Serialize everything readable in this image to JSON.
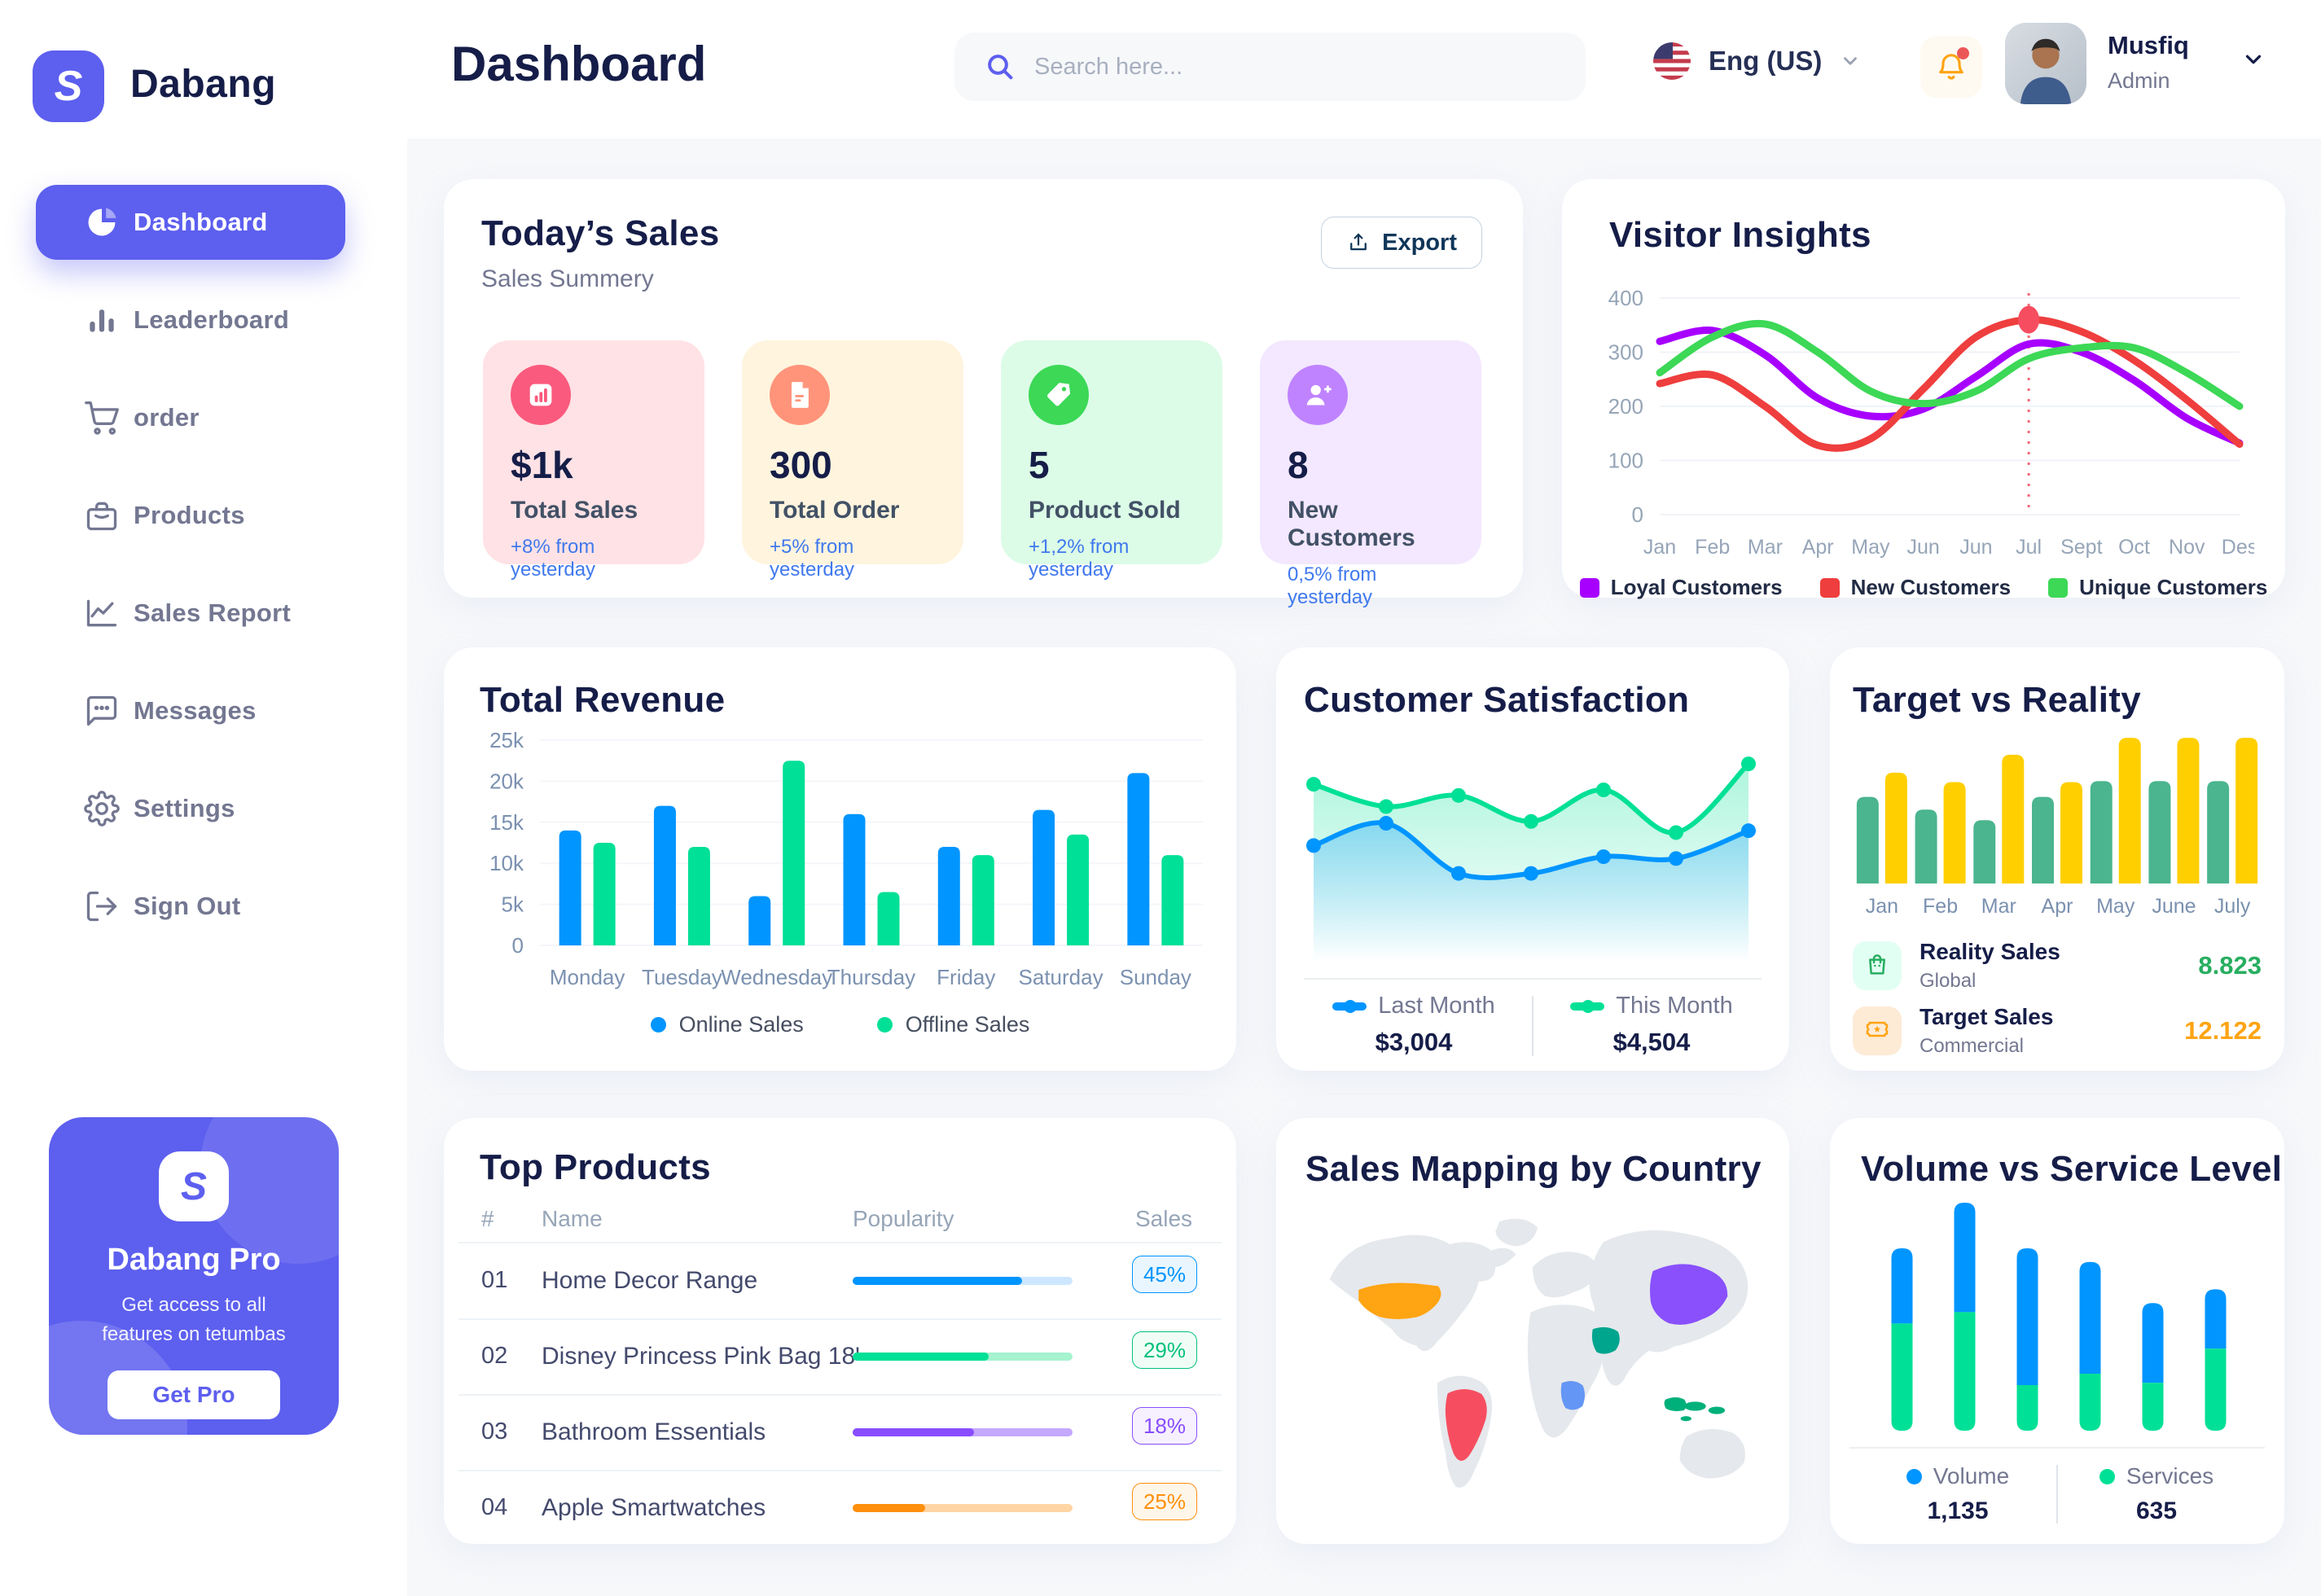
{
  "app": {
    "brand": "Dabang"
  },
  "header": {
    "page_title": "Dashboard",
    "search_placeholder": "Search here...",
    "language": "Eng (US)",
    "user": {
      "name": "Musfiq",
      "role": "Admin"
    }
  },
  "sidebar": {
    "items": [
      {
        "label": "Dashboard",
        "icon": "dashboard",
        "active": true
      },
      {
        "label": "Leaderboard",
        "icon": "leaderboard",
        "active": false
      },
      {
        "label": "order",
        "icon": "order",
        "active": false
      },
      {
        "label": "Products",
        "icon": "products",
        "active": false
      },
      {
        "label": "Sales Report",
        "icon": "sales-report",
        "active": false
      },
      {
        "label": "Messages",
        "icon": "messages",
        "active": false
      },
      {
        "label": "Settings",
        "icon": "settings",
        "active": false
      },
      {
        "label": "Sign Out",
        "icon": "sign-out",
        "active": false
      }
    ],
    "promo": {
      "title": "Dabang Pro",
      "line1": "Get access to all",
      "line2": "features on tetumbas",
      "cta": "Get Pro"
    }
  },
  "todays_sales": {
    "title": "Today’s Sales",
    "subtitle": "Sales Summery",
    "export_label": "Export",
    "cards": [
      {
        "value": "$1k",
        "label": "Total Sales",
        "delta": "+8% from yesterday",
        "bg": "#FFE2E5",
        "icon_bg": "#FA5A7D",
        "icon": "sales"
      },
      {
        "value": "300",
        "label": "Total Order",
        "delta": "+5% from yesterday",
        "bg": "#FFF4DE",
        "icon_bg": "#FF947A",
        "icon": "order"
      },
      {
        "value": "5",
        "label": "Product Sold",
        "delta": "+1,2% from yesterday",
        "bg": "#DCFCE7",
        "icon_bg": "#3CD856",
        "icon": "sold"
      },
      {
        "value": "8",
        "label": "New Customers",
        "delta": "0,5% from yesterday",
        "bg": "#F3E8FF",
        "icon_bg": "#BF83FF",
        "icon": "customers"
      }
    ]
  },
  "chart_data": [
    {
      "id": "visitor-insights",
      "type": "line",
      "title": "Visitor Insights",
      "x": [
        "Jan",
        "Feb",
        "Mar",
        "Apr",
        "May",
        "Jun",
        "Jun",
        "Jul",
        "Sept",
        "Oct",
        "Nov",
        "Des"
      ],
      "ylim": [
        0,
        400
      ],
      "yticks": [
        0,
        100,
        200,
        300,
        400
      ],
      "grid": true,
      "legend_position": "bottom",
      "series": [
        {
          "name": "Loyal Customers",
          "color": "#A700FF",
          "values": [
            320,
            340,
            295,
            215,
            182,
            195,
            255,
            315,
            300,
            248,
            178,
            132
          ]
        },
        {
          "name": "New Customers",
          "color": "#EF3E3E",
          "values": [
            242,
            258,
            200,
            128,
            140,
            232,
            328,
            360,
            338,
            285,
            212,
            130
          ]
        },
        {
          "name": "Unique Customers",
          "color": "#3CD856",
          "values": [
            262,
            328,
            352,
            300,
            228,
            205,
            228,
            288,
            308,
            308,
            262,
            200
          ]
        }
      ],
      "marker": {
        "series": 1,
        "index": 7,
        "value": 360,
        "color": "#F64E60"
      }
    },
    {
      "id": "total-revenue",
      "type": "bar",
      "title": "Total Revenue",
      "categories": [
        "Monday",
        "Tuesday",
        "Wednesday",
        "Thursday",
        "Friday",
        "Saturday",
        "Sunday"
      ],
      "ylim": [
        0,
        25
      ],
      "ytick_labels": [
        "0",
        "5k",
        "10k",
        "15k",
        "20k",
        "25k"
      ],
      "grid": true,
      "legend_position": "bottom",
      "series": [
        {
          "name": "Online Sales",
          "color": "#0095FF",
          "values": [
            14,
            17,
            6,
            16,
            12,
            16.5,
            21
          ]
        },
        {
          "name": "Offline Sales",
          "color": "#00E096",
          "values": [
            12.5,
            12,
            22.5,
            6.5,
            11,
            13.5,
            11
          ]
        }
      ]
    },
    {
      "id": "customer-satisfaction",
      "type": "area",
      "title": "Customer Satisfaction",
      "ylim": [
        0,
        100
      ],
      "grid": false,
      "legend_position": "bottom",
      "series": [
        {
          "name": "Last Month",
          "color": "#0095FF",
          "total": "$3,004",
          "values": [
            45,
            57,
            30,
            30,
            39,
            38,
            53
          ]
        },
        {
          "name": "This Month",
          "color": "#00E096",
          "total": "$4,504",
          "values": [
            78,
            66,
            72,
            58,
            75,
            52,
            89
          ]
        }
      ]
    },
    {
      "id": "target-vs-reality",
      "type": "bar",
      "title": "Target vs Reality",
      "categories": [
        "Jan",
        "Feb",
        "Mar",
        "Apr",
        "May",
        "June",
        "July"
      ],
      "ylim": [
        0,
        14.5
      ],
      "grid": false,
      "series": [
        {
          "name": "Reality Sales",
          "color": "#4AB58E",
          "values": [
            8.2,
            7.0,
            6.0,
            8.2,
            9.7,
            9.7,
            9.7
          ]
        },
        {
          "name": "Target Sales",
          "color": "#FFCF00",
          "values": [
            10.5,
            9.6,
            12.2,
            9.6,
            13.8,
            13.8,
            13.8
          ]
        }
      ],
      "legend": [
        {
          "name": "Reality Sales",
          "sub": "Global",
          "value": "8.823",
          "value_color": "#27AE60",
          "icon_bg": "#E2FFF3",
          "icon_color": "#27AE60"
        },
        {
          "name": "Target Sales",
          "sub": "Commercial",
          "value": "12.122",
          "value_color": "#FFA412",
          "icon_bg": "#FDEBD6",
          "icon_color": "#FFA412"
        }
      ]
    },
    {
      "id": "volume-vs-service",
      "type": "stacked-bar",
      "title": "Volume vs Service Level",
      "ylim": [
        0,
        100
      ],
      "legend_position": "bottom",
      "series": [
        {
          "name": "Volume",
          "color": "#0095FF",
          "total": "1,135",
          "values": [
            33,
            48,
            60,
            49,
            35,
            26
          ]
        },
        {
          "name": "Services",
          "color": "#00E096",
          "total": "635",
          "values": [
            47,
            52,
            20,
            25,
            21,
            36
          ]
        }
      ]
    }
  ],
  "top_products": {
    "title": "Top Products",
    "columns": [
      "#",
      "Name",
      "Popularity",
      "Sales"
    ],
    "rows": [
      {
        "num": "01",
        "name": "Home Decor Range",
        "popularity_pct": 77,
        "sales": "45%",
        "fill": "#0095FF",
        "track": "#CDE7FF",
        "badge_bg": "#EAF6FF",
        "badge_color": "#0095FF"
      },
      {
        "num": "02",
        "name": "Disney Princess Pink Bag 18'",
        "popularity_pct": 62,
        "sales": "29%",
        "fill": "#00E096",
        "track": "#A5F3CF",
        "badge_bg": "#F0FDF6",
        "badge_color": "#00C27C"
      },
      {
        "num": "03",
        "name": "Bathroom Essentials",
        "popularity_pct": 55,
        "sales": "18%",
        "fill": "#884DFF",
        "track": "#C5A8FF",
        "badge_bg": "#F7F1FF",
        "badge_color": "#884DFF"
      },
      {
        "num": "04",
        "name": "Apple Smartwatches",
        "popularity_pct": 33,
        "sales": "25%",
        "fill": "#FF8F0D",
        "track": "#FFD5A4",
        "badge_bg": "#FFF6EA",
        "badge_color": "#FF8F0D"
      }
    ]
  },
  "sales_mapping": {
    "title": "Sales Mapping by Country",
    "countries": [
      {
        "name": "United States",
        "color": "#FFA412"
      },
      {
        "name": "Brazil",
        "color": "#F64E60"
      },
      {
        "name": "Saudi Arabia",
        "color": "#00A58E"
      },
      {
        "name": "DR Congo",
        "color": "#6496F6"
      },
      {
        "name": "China",
        "color": "#8950FC"
      },
      {
        "name": "Indonesia",
        "color": "#00B07B"
      }
    ]
  },
  "colors": {
    "accent": "#5D5FEF",
    "title": "#151D48",
    "muted": "#737791",
    "axis": "#96A5B8"
  }
}
